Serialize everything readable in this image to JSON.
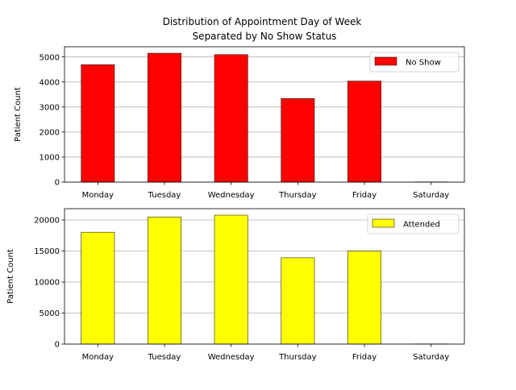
{
  "chart_data": {
    "title": "Distribution of Appointment Day of Week",
    "subtitle": "Separated by No Show Status",
    "panels": [
      {
        "type": "bar",
        "categories": [
          "Monday",
          "Tuesday",
          "Wednesday",
          "Thursday",
          "Friday",
          "Saturday"
        ],
        "series": [
          {
            "name": "No Show",
            "values": [
              4690,
              5150,
              5093,
              3338,
              4037,
              9
            ],
            "color": "#ff0000"
          }
        ],
        "ylabel": "Patient Count",
        "xlabel": "",
        "ylim": [
          0,
          5408
        ],
        "yticks": [
          0,
          1000,
          2000,
          3000,
          4000,
          5000
        ],
        "grid": "y",
        "legend_position": "top-right"
      },
      {
        "type": "bar",
        "categories": [
          "Monday",
          "Tuesday",
          "Wednesday",
          "Thursday",
          "Friday",
          "Saturday"
        ],
        "series": [
          {
            "name": "Attended",
            "values": [
              18025,
              20488,
              20774,
              13909,
              14982,
              30
            ],
            "color": "#ffff00"
          }
        ],
        "ylabel": "Patient Count",
        "xlabel": "",
        "ylim": [
          0,
          21813
        ],
        "yticks": [
          0,
          5000,
          10000,
          15000,
          20000
        ],
        "grid": "y",
        "legend_position": "top-right"
      }
    ]
  }
}
